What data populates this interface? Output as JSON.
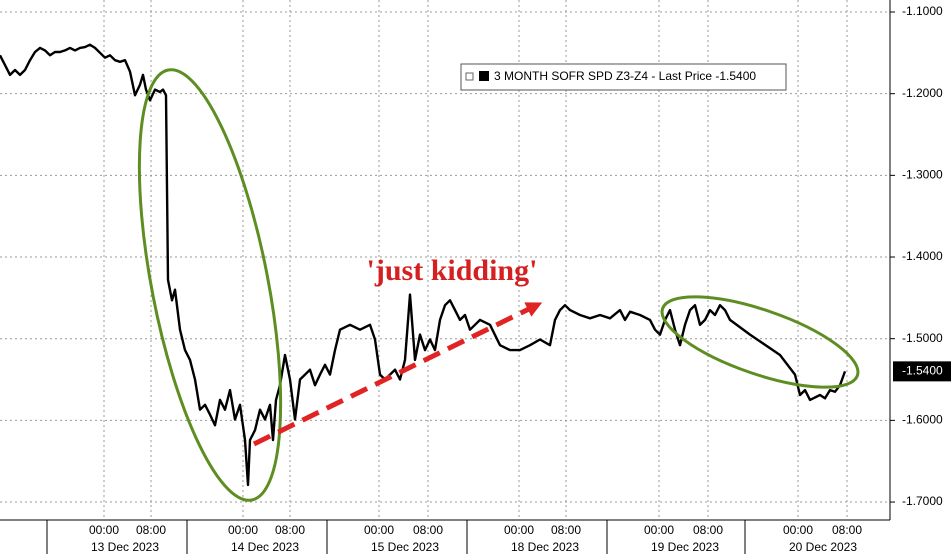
{
  "chart_data": {
    "type": "line",
    "annotation": "'just kidding'",
    "series": [
      {
        "name": "3 MONTH SOFR SPD Z3-Z4 - Last Price -1.5400",
        "color": "#000000",
        "x": [
          0,
          0.5,
          1,
          1.5,
          2,
          2.5,
          3,
          3.5,
          4,
          4.5,
          5,
          5.5,
          6,
          6.5,
          7,
          7.5,
          8,
          8.5,
          9,
          9.5,
          10,
          10.5,
          11,
          11.5,
          12,
          12.5,
          13,
          13.5,
          14,
          14.3,
          14.6,
          15,
          15.5,
          16,
          16.3,
          16.6,
          16.8,
          17.2,
          17.5,
          18,
          18.5,
          19,
          19.5,
          20,
          20.5,
          21,
          21.5,
          22,
          22.5,
          23,
          23.5,
          24,
          24.5,
          24.8,
          25,
          25.5,
          26,
          26.5,
          27,
          27.3,
          27.6,
          28,
          28.5,
          29,
          29.5,
          30,
          30.5,
          31,
          31.5,
          32,
          32.5,
          33,
          33.5,
          34,
          35,
          36,
          37,
          37.5,
          38,
          38.5,
          39,
          39.5,
          40,
          40.5,
          41,
          41.5,
          42,
          42.5,
          43,
          43.5,
          44,
          44.5,
          45,
          45.5,
          46,
          46.5,
          47,
          47.5,
          48,
          49,
          50,
          51,
          52,
          53,
          54,
          55,
          55.5,
          56,
          56.5,
          57,
          58,
          59,
          60,
          61,
          62,
          62.5,
          63,
          64,
          65,
          65.5,
          66,
          66.5,
          67,
          67.5,
          68,
          68.5,
          69,
          69.5,
          70,
          70.5,
          71,
          71.5,
          72,
          72.5,
          73,
          75,
          78,
          79.5,
          80,
          80.5,
          81,
          82,
          82.5,
          83,
          83.5,
          84,
          84.5
        ],
        "values": [
          -1.153,
          -1.165,
          -1.177,
          -1.171,
          -1.177,
          -1.171,
          -1.159,
          -1.149,
          -1.144,
          -1.147,
          -1.153,
          -1.149,
          -1.149,
          -1.147,
          -1.144,
          -1.147,
          -1.144,
          -1.143,
          -1.14,
          -1.144,
          -1.15,
          -1.156,
          -1.153,
          -1.159,
          -1.161,
          -1.159,
          -1.173,
          -1.202,
          -1.189,
          -1.177,
          -1.195,
          -1.208,
          -1.195,
          -1.198,
          -1.195,
          -1.202,
          -1.428,
          -1.453,
          -1.44,
          -1.489,
          -1.514,
          -1.526,
          -1.55,
          -1.587,
          -1.581,
          -1.593,
          -1.606,
          -1.575,
          -1.587,
          -1.563,
          -1.599,
          -1.581,
          -1.624,
          -1.679,
          -1.624,
          -1.612,
          -1.587,
          -1.599,
          -1.581,
          -1.624,
          -1.575,
          -1.557,
          -1.52,
          -1.55,
          -1.599,
          -1.55,
          -1.544,
          -1.538,
          -1.557,
          -1.544,
          -1.532,
          -1.544,
          -1.514,
          -1.489,
          -1.483,
          -1.489,
          -1.483,
          -1.501,
          -1.544,
          -1.55,
          -1.544,
          -1.538,
          -1.55,
          -1.526,
          -1.446,
          -1.526,
          -1.495,
          -1.514,
          -1.501,
          -1.514,
          -1.477,
          -1.459,
          -1.453,
          -1.465,
          -1.477,
          -1.471,
          -1.489,
          -1.483,
          -1.477,
          -1.483,
          -1.508,
          -1.514,
          -1.514,
          -1.508,
          -1.501,
          -1.508,
          -1.477,
          -1.465,
          -1.459,
          -1.465,
          -1.471,
          -1.475,
          -1.471,
          -1.475,
          -1.465,
          -1.477,
          -1.467,
          -1.471,
          -1.477,
          -1.489,
          -1.495,
          -1.477,
          -1.465,
          -1.489,
          -1.508,
          -1.483,
          -1.465,
          -1.459,
          -1.483,
          -1.477,
          -1.465,
          -1.471,
          -1.459,
          -1.465,
          -1.477,
          -1.495,
          -1.52,
          -1.544,
          -1.569,
          -1.563,
          -1.575,
          -1.569,
          -1.573,
          -1.563,
          -1.565,
          -1.557,
          -1.54
        ]
      }
    ],
    "last_price": {
      "value": -1.54,
      "label": "-1.5400"
    },
    "xlim": [
      0,
      89
    ],
    "ylim": [
      -1.722,
      -1.0853
    ],
    "yticks": [
      {
        "value": -1.1,
        "label": "-1.1000"
      },
      {
        "value": -1.2,
        "label": "-1.2000"
      },
      {
        "value": -1.3,
        "label": "-1.3000"
      },
      {
        "value": -1.4,
        "label": "-1.4000"
      },
      {
        "value": -1.5,
        "label": "-1.5000"
      },
      {
        "value": -1.6,
        "label": "-1.6000"
      },
      {
        "value": -1.7,
        "label": "-1.7000"
      }
    ],
    "xticks": [
      {
        "value": 10.4,
        "label": "00:00"
      },
      {
        "value": 15.1,
        "label": "08:00"
      },
      {
        "value": 24.3,
        "label": "00:00"
      },
      {
        "value": 29,
        "label": "08:00"
      },
      {
        "value": 37.9,
        "label": "00:00"
      },
      {
        "value": 42.8,
        "label": "08:00"
      },
      {
        "value": 51.9,
        "label": "00:00"
      },
      {
        "value": 56.6,
        "label": "08:00"
      },
      {
        "value": 65.9,
        "label": "00:00"
      },
      {
        "value": 70.8,
        "label": "08:00"
      },
      {
        "value": 79.8,
        "label": "00:00"
      },
      {
        "value": 84.7,
        "label": "08:00"
      }
    ],
    "xdays": [
      {
        "value": 12.5,
        "label": "13 Dec 2023"
      },
      {
        "value": 26.5,
        "label": "14 Dec 2023"
      },
      {
        "value": 40.5,
        "label": "15 Dec 2023"
      },
      {
        "value": 54.5,
        "label": "18 Dec 2023"
      },
      {
        "value": 68.5,
        "label": "19 Dec 2023"
      },
      {
        "value": 82.3,
        "label": "20 Dec 2023"
      }
    ],
    "xminorticks": [
      4.7,
      18.7,
      32.7,
      46.7,
      60.7,
      74.5
    ],
    "grid": true
  }
}
